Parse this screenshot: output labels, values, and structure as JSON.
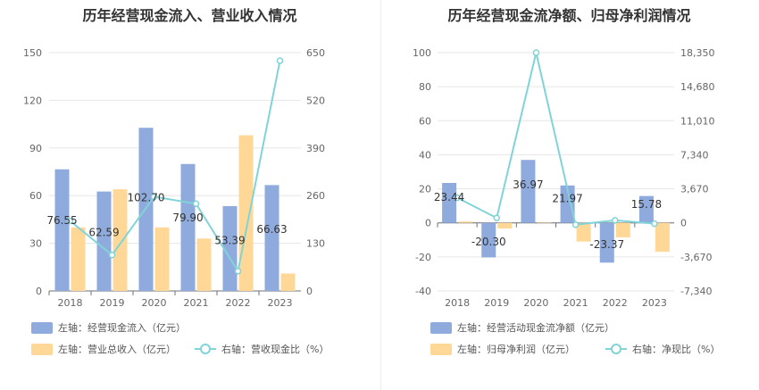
{
  "charts": [
    {
      "title": "历年经营现金流入、营业收入情况",
      "chart_data": {
        "type": "bar",
        "categories": [
          "2018",
          "2019",
          "2020",
          "2021",
          "2022",
          "2023"
        ],
        "series": [
          {
            "name": "左轴：经营现金流入（亿元）",
            "type": "bar",
            "axis": "left",
            "color": "#8faadc",
            "values": [
              76.55,
              62.59,
              102.7,
              79.9,
              53.39,
              66.63
            ],
            "labels": [
              "76.55",
              "62.59",
              "102.70",
              "79.90",
              "53.39",
              "66.63"
            ]
          },
          {
            "name": "左轴：营业总收入（亿元）",
            "type": "bar",
            "axis": "left",
            "color": "#ffd898",
            "values": [
              40,
              64,
              40,
              33,
              98,
              11
            ]
          },
          {
            "name": "右轴：营收现金比（%）",
            "type": "line",
            "axis": "right",
            "color": "#80d4d8",
            "values": [
              191,
              98,
              257,
              238,
              54,
              628
            ]
          }
        ],
        "left_axis": {
          "min": 0,
          "max": 150,
          "ticks": [
            "0",
            "30",
            "60",
            "90",
            "120",
            "150"
          ]
        },
        "right_axis": {
          "min": 0,
          "max": 650,
          "ticks": [
            "0",
            "130",
            "260",
            "390",
            "520",
            "650"
          ]
        },
        "grid": true,
        "legend_position": "bottom"
      }
    },
    {
      "title": "历年经营现金流净额、归母净利润情况",
      "chart_data": {
        "type": "bar",
        "categories": [
          "2018",
          "2019",
          "2020",
          "2021",
          "2022",
          "2023"
        ],
        "series": [
          {
            "name": "左轴：经营活动现金流净额（亿元）",
            "type": "bar",
            "axis": "left",
            "color": "#8faadc",
            "values": [
              23.44,
              -20.3,
              36.97,
              21.97,
              -23.37,
              15.78
            ],
            "labels": [
              "23.44",
              "-20.30",
              "36.97",
              "21.97",
              "-23.37",
              "15.78"
            ]
          },
          {
            "name": "左轴：归母净利润（亿元）",
            "type": "bar",
            "axis": "left",
            "color": "#ffd898",
            "values": [
              0.8,
              -3.3,
              0.3,
              -11,
              -8.5,
              -17
            ]
          },
          {
            "name": "右轴：净现比（%）",
            "type": "line",
            "axis": "right",
            "color": "#80d4d8",
            "values": [
              2700,
              530,
              18350,
              -200,
              270,
              -90
            ]
          }
        ],
        "left_axis": {
          "min": -40,
          "max": 100,
          "ticks": [
            "-40",
            "-20",
            "0",
            "20",
            "40",
            "60",
            "80",
            "100"
          ]
        },
        "right_axis": {
          "min": -7340,
          "max": 18350,
          "ticks": [
            "-7,340",
            "-3,670",
            "0",
            "3,670",
            "7,340",
            "11,010",
            "14,680",
            "18,350"
          ]
        },
        "grid": true,
        "legend_position": "bottom"
      }
    }
  ]
}
